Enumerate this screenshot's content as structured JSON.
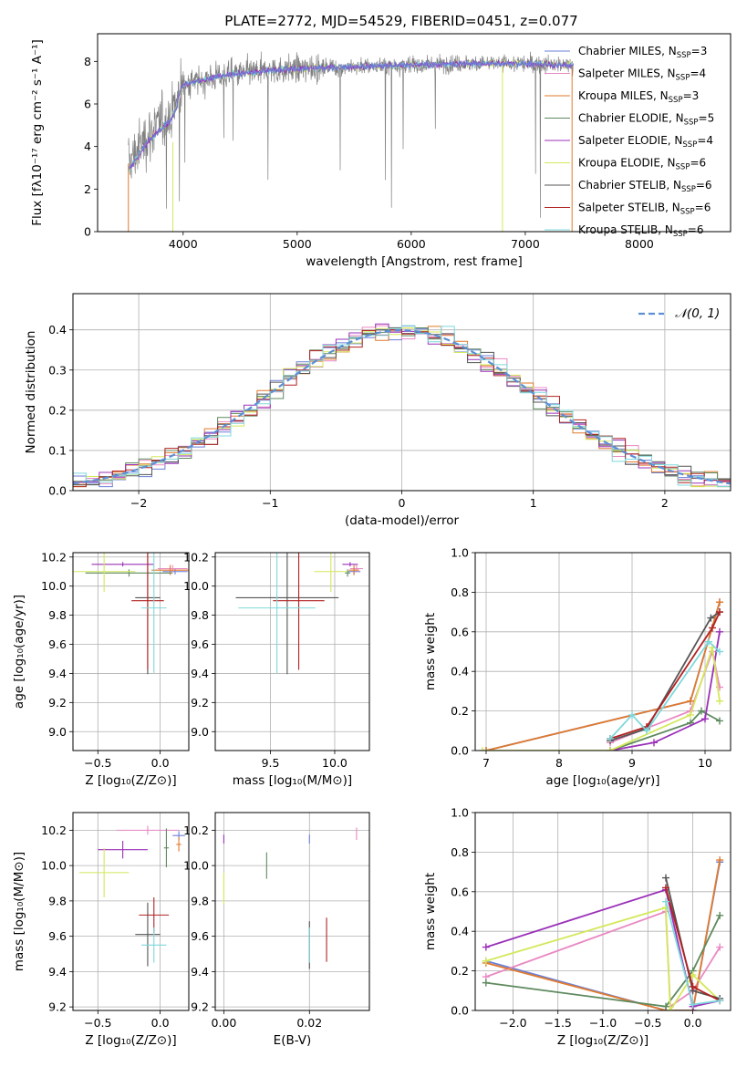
{
  "title": "PLATE=2772, MJD=54529, FIBERID=0451, z=0.077",
  "colors": {
    "chabrier_miles": "#6b7fd7",
    "salpeter_miles": "#e989c3",
    "kroupa_miles": "#e07a2e",
    "chabrier_elodie": "#5e8a5e",
    "salpeter_elodie": "#9b30b9",
    "kroupa_elodie": "#d4e85a",
    "chabrier_stelib": "#555555",
    "salpeter_stelib": "#b22222",
    "kroupa_stelib": "#7fd8dc",
    "data": "#808080",
    "normal": "#5b8fd6"
  },
  "chart_data": [
    {
      "type": "line",
      "name": "spectrum",
      "xlabel": "wavelength [Angstrom, rest frame]",
      "ylabel": "Flux [fλ10⁻¹⁷ erg cm⁻² s⁻¹ A⁻¹]",
      "xlim": [
        3250,
        8800
      ],
      "ylim": [
        0,
        9.3
      ],
      "xticks": [
        "4000",
        "5000",
        "6000",
        "7000",
        "8000"
      ],
      "yticks": [
        "0",
        "2",
        "4",
        "6",
        "8"
      ],
      "legend_placement": "right",
      "legend": [
        {
          "label": "Chabrier MILES, N",
          "sub": "SSP",
          "suffix": "=3"
        },
        {
          "label": "Salpeter MILES, N",
          "sub": "SSP",
          "suffix": "=4"
        },
        {
          "label": "Kroupa MILES, N",
          "sub": "SSP",
          "suffix": "=3"
        },
        {
          "label": "Chabrier ELODIE, N",
          "sub": "SSP",
          "suffix": "=5"
        },
        {
          "label": "Salpeter ELODIE, N",
          "sub": "SSP",
          "suffix": "=4"
        },
        {
          "label": "Kroupa ELODIE, N",
          "sub": "SSP",
          "suffix": "=6"
        },
        {
          "label": "Chabrier STELIB, N",
          "sub": "SSP",
          "suffix": "=6"
        },
        {
          "label": "Salpeter STELIB, N",
          "sub": "SSP",
          "suffix": "=6"
        },
        {
          "label": "Kroupa STELIB, N",
          "sub": "SSP",
          "suffix": "=6"
        }
      ],
      "data_range": [
        3520,
        7420
      ],
      "continuum_points": [
        [
          3520,
          3.2
        ],
        [
          3700,
          4.6
        ],
        [
          3900,
          5.6
        ],
        [
          4000,
          6.9
        ],
        [
          4300,
          7.3
        ],
        [
          4800,
          7.6
        ],
        [
          5200,
          7.7
        ],
        [
          5800,
          7.8
        ],
        [
          6500,
          7.9
        ],
        [
          7000,
          7.9
        ],
        [
          7420,
          7.8
        ]
      ]
    },
    {
      "type": "line",
      "name": "residual-histogram",
      "xlabel": "(data-model)/error",
      "ylabel": "Normed distribution",
      "xlim": [
        -2.5,
        2.5
      ],
      "ylim": [
        0,
        0.49
      ],
      "xticks": [
        "−2",
        "−1",
        "0",
        "1",
        "2"
      ],
      "yticks": [
        "0.0",
        "0.1",
        "0.2",
        "0.3",
        "0.4"
      ],
      "normal_label": "𝒩(0, 1)",
      "legend_placement": "top-right",
      "normal_mean": 0,
      "normal_sigma": 1
    },
    {
      "type": "scatter",
      "name": "age-vs-Z",
      "xlabel": "Z [log₁₀(Z/Z⊙)]",
      "ylabel": "age  [log₁₀(age/yr)]",
      "xlim": [
        -0.7,
        0.23
      ],
      "ylim": [
        8.87,
        10.23
      ],
      "xticks": [
        "−0.5",
        "0.0"
      ],
      "yticks": [
        "9.0",
        "9.2",
        "9.4",
        "9.6",
        "9.8",
        "10.0",
        "10.2"
      ],
      "points": [
        {
          "c": "chabrier_miles",
          "x": 0.12,
          "y": 10.1,
          "xe": 0.1,
          "ye": 0.04
        },
        {
          "c": "salpeter_miles",
          "x": 0.1,
          "y": 10.12,
          "xe": 0.12,
          "ye": 0.05
        },
        {
          "c": "kroupa_miles",
          "x": 0.08,
          "y": 10.11,
          "xe": 0.15,
          "ye": 0.07
        },
        {
          "c": "chabrier_elodie",
          "x": -0.25,
          "y": 10.09,
          "xe": 0.35,
          "ye": 0.05
        },
        {
          "c": "salpeter_elodie",
          "x": -0.3,
          "y": 10.15,
          "xe": 0.25,
          "ye": 0.03
        },
        {
          "c": "kroupa_elodie",
          "x": -0.45,
          "y": 10.1,
          "xe": 0.25,
          "ye": 0.28
        },
        {
          "c": "chabrier_stelib",
          "x": -0.1,
          "y": 9.92,
          "xe": 0.1,
          "ye": 1.05
        },
        {
          "c": "salpeter_stelib",
          "x": -0.1,
          "y": 9.9,
          "xe": 0.13,
          "ye": 0.95
        },
        {
          "c": "kroupa_stelib",
          "x": -0.05,
          "y": 9.85,
          "xe": 0.1,
          "ye": 0.9
        }
      ]
    },
    {
      "type": "scatter",
      "name": "age-vs-mass",
      "xlabel": "mass [log₁₀(M/M⊙)]",
      "ylabel": "",
      "xlim": [
        9.07,
        10.27
      ],
      "ylim": [
        8.87,
        10.23
      ],
      "xticks": [
        "9.5",
        "10.0"
      ],
      "yticks": [
        "9.0",
        "9.2",
        "9.4",
        "9.6",
        "9.8",
        "10.0",
        "10.2"
      ],
      "points": [
        {
          "c": "chabrier_miles",
          "x": 10.15,
          "y": 10.1,
          "xe": 0.05,
          "ye": 0.04
        },
        {
          "c": "salpeter_miles",
          "x": 10.17,
          "y": 10.12,
          "xe": 0.05,
          "ye": 0.05
        },
        {
          "c": "kroupa_miles",
          "x": 10.15,
          "y": 10.11,
          "xe": 0.04,
          "ye": 0.07
        },
        {
          "c": "chabrier_elodie",
          "x": 10.1,
          "y": 10.09,
          "xe": 0.02,
          "ye": 0.05
        },
        {
          "c": "salpeter_elodie",
          "x": 10.12,
          "y": 10.15,
          "xe": 0.06,
          "ye": 0.03
        },
        {
          "c": "kroupa_elodie",
          "x": 9.97,
          "y": 10.1,
          "xe": 0.13,
          "ye": 0.28
        },
        {
          "c": "chabrier_stelib",
          "x": 9.63,
          "y": 9.92,
          "xe": 0.4,
          "ye": 1.05
        },
        {
          "c": "salpeter_stelib",
          "x": 9.72,
          "y": 9.9,
          "xe": 0.2,
          "ye": 0.95
        },
        {
          "c": "kroupa_stelib",
          "x": 9.55,
          "y": 9.85,
          "xe": 0.3,
          "ye": 0.9
        }
      ]
    },
    {
      "type": "line",
      "name": "mass-weight-vs-age",
      "xlabel": "age  [log₁₀(age/yr)]",
      "ylabel": "mass weight",
      "xlim": [
        6.85,
        10.35
      ],
      "ylim": [
        0,
        1
      ],
      "xticks": [
        "7",
        "8",
        "9",
        "10"
      ],
      "yticks": [
        "0.0",
        "0.2",
        "0.4",
        "0.6",
        "0.8",
        "1.0"
      ],
      "series": [
        {
          "c": "chabrier_miles",
          "x": [
            7.0,
            9.8,
            10.2
          ],
          "y": [
            0.0,
            0.25,
            0.75
          ]
        },
        {
          "c": "salpeter_miles",
          "x": [
            8.7,
            9.8,
            10.1,
            10.2
          ],
          "y": [
            0.04,
            0.2,
            0.5,
            0.32
          ]
        },
        {
          "c": "kroupa_miles",
          "x": [
            7.0,
            9.8,
            10.2
          ],
          "y": [
            0.0,
            0.25,
            0.75
          ]
        },
        {
          "c": "chabrier_elodie",
          "x": [
            8.7,
            9.8,
            9.95,
            10.2
          ],
          "y": [
            0.0,
            0.14,
            0.2,
            0.15
          ]
        },
        {
          "c": "salpeter_elodie",
          "x": [
            8.7,
            9.3,
            10.0,
            10.2
          ],
          "y": [
            0.0,
            0.04,
            0.16,
            0.6
          ]
        },
        {
          "c": "kroupa_elodie",
          "x": [
            6.95,
            8.7,
            9.8,
            10.1,
            10.2
          ],
          "y": [
            0.0,
            0.0,
            0.18,
            0.52,
            0.25
          ]
        },
        {
          "c": "chabrier_stelib",
          "x": [
            8.7,
            9.2,
            10.08,
            10.2
          ],
          "y": [
            0.05,
            0.11,
            0.67,
            0.7
          ]
        },
        {
          "c": "salpeter_stelib",
          "x": [
            8.7,
            9.2,
            10.1,
            10.2
          ],
          "y": [
            0.06,
            0.12,
            0.62,
            0.7
          ]
        },
        {
          "c": "kroupa_stelib",
          "x": [
            8.7,
            9.0,
            9.2,
            10.05,
            10.2
          ],
          "y": [
            0.06,
            0.18,
            0.1,
            0.55,
            0.5
          ]
        }
      ]
    },
    {
      "type": "scatter",
      "name": "mass-vs-Z",
      "xlabel": "Z [log₁₀(Z/Z⊙)]",
      "ylabel": "mass [log₁₀(M/M⊙)]",
      "xlim": [
        -0.7,
        0.23
      ],
      "ylim": [
        9.18,
        10.3
      ],
      "xticks": [
        "−0.5",
        "0.0"
      ],
      "yticks": [
        "9.2",
        "9.4",
        "9.6",
        "9.8",
        "10.0",
        "10.2"
      ],
      "points": [
        {
          "c": "chabrier_miles",
          "x": 0.15,
          "y": 10.17,
          "xe": 0.05,
          "ye": 0.05
        },
        {
          "c": "salpeter_miles",
          "x": -0.1,
          "y": 10.2,
          "xe": 0.25,
          "ye": 0.05
        },
        {
          "c": "kroupa_miles",
          "x": 0.15,
          "y": 10.12,
          "xe": 0.02,
          "ye": 0.08
        },
        {
          "c": "chabrier_elodie",
          "x": 0.05,
          "y": 10.1,
          "xe": 0.02,
          "ye": 0.22
        },
        {
          "c": "salpeter_elodie",
          "x": -0.3,
          "y": 10.09,
          "xe": 0.2,
          "ye": 0.1
        },
        {
          "c": "kroupa_elodie",
          "x": -0.45,
          "y": 9.96,
          "xe": 0.2,
          "ye": 0.28
        },
        {
          "c": "chabrier_stelib",
          "x": -0.1,
          "y": 9.61,
          "xe": 0.1,
          "ye": 0.36
        },
        {
          "c": "salpeter_stelib",
          "x": -0.05,
          "y": 9.72,
          "xe": 0.12,
          "ye": 0.2
        },
        {
          "c": "kroupa_stelib",
          "x": -0.05,
          "y": 9.55,
          "xe": 0.1,
          "ye": 0.2
        }
      ]
    },
    {
      "type": "scatter",
      "name": "mass-vs-ebv",
      "xlabel": "E(B-V)",
      "ylabel": "",
      "xlim": [
        -0.002,
        0.034
      ],
      "ylim": [
        9.18,
        10.3
      ],
      "xticks": [
        "0.00",
        "0.02"
      ],
      "yticks": [
        "9.2",
        "9.4",
        "9.6",
        "9.8",
        "10.0",
        "10.2"
      ],
      "points": [
        {
          "c": "chabrier_miles",
          "x": 0.02,
          "y": 10.15,
          "xe": 0,
          "ye": 0.05
        },
        {
          "c": "salpeter_miles",
          "x": 0.031,
          "y": 10.18,
          "xe": 0,
          "ye": 0.07
        },
        {
          "c": "kroupa_miles",
          "x": 0.034,
          "y": 10.12,
          "xe": 0,
          "ye": 0.07
        },
        {
          "c": "chabrier_elodie",
          "x": 0.01,
          "y": 10.0,
          "xe": 0,
          "ye": 0.15
        },
        {
          "c": "salpeter_elodie",
          "x": 0.0,
          "y": 10.15,
          "xe": 0,
          "ye": 0.05
        },
        {
          "c": "kroupa_elodie",
          "x": 0.0,
          "y": 9.87,
          "xe": 0,
          "ye": 0.18
        },
        {
          "c": "chabrier_stelib",
          "x": 0.02,
          "y": 9.55,
          "xe": 0,
          "ye": 0.27
        },
        {
          "c": "salpeter_stelib",
          "x": 0.024,
          "y": 9.58,
          "xe": 0,
          "ye": 0.25
        },
        {
          "c": "kroupa_stelib",
          "x": 0.02,
          "y": 9.55,
          "xe": 0,
          "ye": 0.2
        }
      ]
    },
    {
      "type": "line",
      "name": "mass-weight-vs-Z",
      "xlabel": "Z [log₁₀(Z/Z⊙)]",
      "ylabel": "mass weight",
      "xlim": [
        -2.42,
        0.42
      ],
      "ylim": [
        0,
        1
      ],
      "xticks": [
        "−2.0",
        "−1.5",
        "−1.0",
        "−0.5",
        "0.0"
      ],
      "yticks": [
        "0.0",
        "0.2",
        "0.4",
        "0.6",
        "0.8",
        "1.0"
      ],
      "series": [
        {
          "c": "chabrier_miles",
          "x": [
            -2.3,
            -0.3,
            0.0,
            0.3
          ],
          "y": [
            0.25,
            0.0,
            0.0,
            0.75
          ]
        },
        {
          "c": "salpeter_miles",
          "x": [
            -2.3,
            -0.3,
            -0.25,
            0.0,
            0.3
          ],
          "y": [
            0.17,
            0.5,
            0.02,
            0.1,
            0.32
          ]
        },
        {
          "c": "kroupa_miles",
          "x": [
            -2.3,
            -0.3,
            0.0,
            0.3
          ],
          "y": [
            0.24,
            0.0,
            0.0,
            0.76
          ]
        },
        {
          "c": "chabrier_elodie",
          "x": [
            -2.3,
            -0.3,
            0.0,
            0.3
          ],
          "y": [
            0.14,
            0.02,
            0.2,
            0.48
          ]
        },
        {
          "c": "salpeter_elodie",
          "x": [
            -2.3,
            -0.3,
            0.0,
            0.3
          ],
          "y": [
            0.32,
            0.61,
            0.02,
            0.05
          ]
        },
        {
          "c": "kroupa_elodie",
          "x": [
            -2.3,
            -0.3,
            -0.25,
            0.0,
            0.3
          ],
          "y": [
            0.25,
            0.52,
            0.0,
            0.18,
            0.05
          ]
        },
        {
          "c": "chabrier_stelib",
          "x": [
            -0.3,
            0.0,
            0.3
          ],
          "y": [
            0.67,
            0.1,
            0.06
          ]
        },
        {
          "c": "salpeter_stelib",
          "x": [
            -0.3,
            0.0,
            0.3
          ],
          "y": [
            0.62,
            0.12,
            0.05
          ]
        },
        {
          "c": "kroupa_stelib",
          "x": [
            -0.3,
            0.0,
            0.3
          ],
          "y": [
            0.55,
            0.03,
            0.05
          ]
        }
      ]
    }
  ]
}
